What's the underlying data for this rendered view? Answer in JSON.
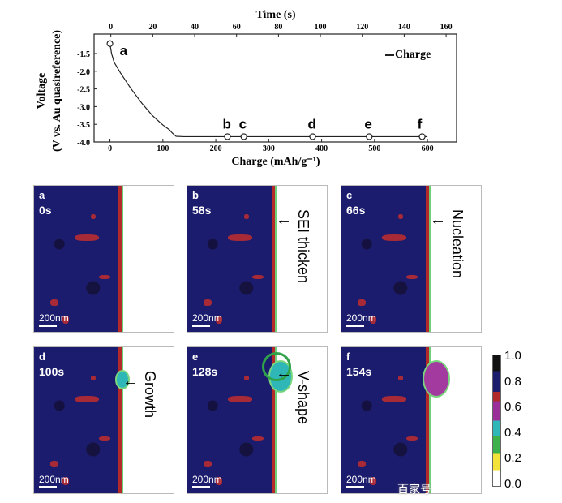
{
  "chart_data": {
    "type": "line",
    "xlabel": "Charge (mAh/g⁻¹)",
    "x2label": "Time (s)",
    "ylabel": "Voltage",
    "ylabel2": "(V vs. Au quasireference)",
    "xlim": [
      -30,
      655
    ],
    "x2lim": [
      -8,
      165
    ],
    "ylim": [
      -4.0,
      -0.95
    ],
    "xticks": [
      0,
      100,
      200,
      300,
      400,
      500,
      600
    ],
    "x2ticks": [
      0,
      20,
      40,
      60,
      80,
      100,
      120,
      140,
      160
    ],
    "yticks": [
      -1.5,
      -2.0,
      -2.5,
      -3.0,
      -3.5,
      -4.0
    ],
    "legend": {
      "label": "Charge",
      "position": "top-right"
    },
    "series": [
      {
        "name": "Charge",
        "x": [
          0,
          3,
          8,
          20,
          40,
          60,
          80,
          100,
          112,
          118,
          125,
          140,
          600
        ],
        "y": [
          -1.22,
          -1.5,
          -1.75,
          -2.05,
          -2.5,
          -2.9,
          -3.25,
          -3.52,
          -3.65,
          -3.75,
          -3.84,
          -3.85,
          -3.85
        ]
      }
    ],
    "markers": [
      {
        "label": "a",
        "x": 0,
        "y": -1.22
      },
      {
        "label": "b",
        "x": 222,
        "y": -3.85
      },
      {
        "label": "c",
        "x": 253,
        "y": -3.85
      },
      {
        "label": "d",
        "x": 383,
        "y": -3.85
      },
      {
        "label": "e",
        "x": 490,
        "y": -3.85
      },
      {
        "label": "f",
        "x": 590,
        "y": -3.85
      }
    ]
  },
  "panels": [
    {
      "label": "a",
      "time": "0s",
      "scale": "200nm",
      "annotation": ""
    },
    {
      "label": "b",
      "time": "58s",
      "scale": "200nm",
      "annotation": "SEI thicken"
    },
    {
      "label": "c",
      "time": "66s",
      "scale": "200nm",
      "annotation": "Nucleation"
    },
    {
      "label": "d",
      "time": "100s",
      "scale": "200nm",
      "annotation": "Growth"
    },
    {
      "label": "e",
      "time": "128s",
      "scale": "200nm",
      "annotation": "V-shape"
    },
    {
      "label": "f",
      "time": "154s",
      "scale": "200nm",
      "annotation": ""
    }
  ],
  "colorbar": {
    "ticks": [
      "1.0",
      "0.8",
      "0.6",
      "0.4",
      "0.2",
      "0.0"
    ],
    "colors": [
      "#111111",
      "#1d1d6e",
      "#b02a2a",
      "#9a2f9a",
      "#2fb7b7",
      "#3cb04a",
      "#f2e23a",
      "#ffffff"
    ]
  },
  "watermark": "百家号"
}
